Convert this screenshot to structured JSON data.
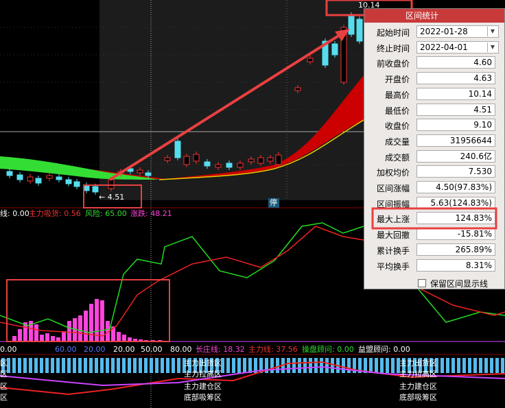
{
  "price_chart": {
    "high_label": "10.14",
    "low_label": "← 4.51",
    "halt_label": "停"
  },
  "indicator_header": [
    "线: 0.00",
    "主力吸货: 0.56",
    "风险: 65.00",
    "涨跌: 48.21"
  ],
  "scale_labels": [
    "0.00",
    "60.00",
    "20.00",
    "20.00",
    "50.00"
  ],
  "bottom_header": [
    "80.00",
    "长庄线: 18.32",
    "主力线: 37.56",
    "操盘顾问: 0.00",
    "益盟顾问: 0.00"
  ],
  "zones": {
    "left": [
      "区",
      "区",
      "区",
      "区"
    ],
    "middle": [
      "主力出货区",
      "主力拉高区",
      "主力建仓区",
      "底部吸筹区"
    ],
    "right": [
      "主力出货区",
      "主力拉高区",
      "主力建仓区",
      "底部吸筹区"
    ]
  },
  "dialog": {
    "title": "区间统计",
    "rows": [
      [
        "起始时间",
        "2022-01-28"
      ],
      [
        "终止时间",
        "2022-04-01"
      ],
      [
        "前收盘价",
        "4.60"
      ],
      [
        "开盘价",
        "4.63"
      ],
      [
        "最高价",
        "10.14"
      ],
      [
        "最低价",
        "4.51"
      ],
      [
        "收盘价",
        "9.10"
      ],
      [
        "成交量",
        "31956644"
      ],
      [
        "成交额",
        "240.6亿"
      ],
      [
        "加权均价",
        "7.530"
      ],
      [
        "区间涨幅",
        "4.50(97.83%)"
      ],
      [
        "区间振幅",
        "5.63(124.83%)"
      ],
      [
        "最大上涨",
        "124.83%"
      ],
      [
        "最大回撤",
        "-15.81%"
      ],
      [
        "累计换手",
        "265.89%"
      ],
      [
        "平均换手",
        "8.31%"
      ]
    ],
    "checkbox": "保留区间显示线"
  }
}
